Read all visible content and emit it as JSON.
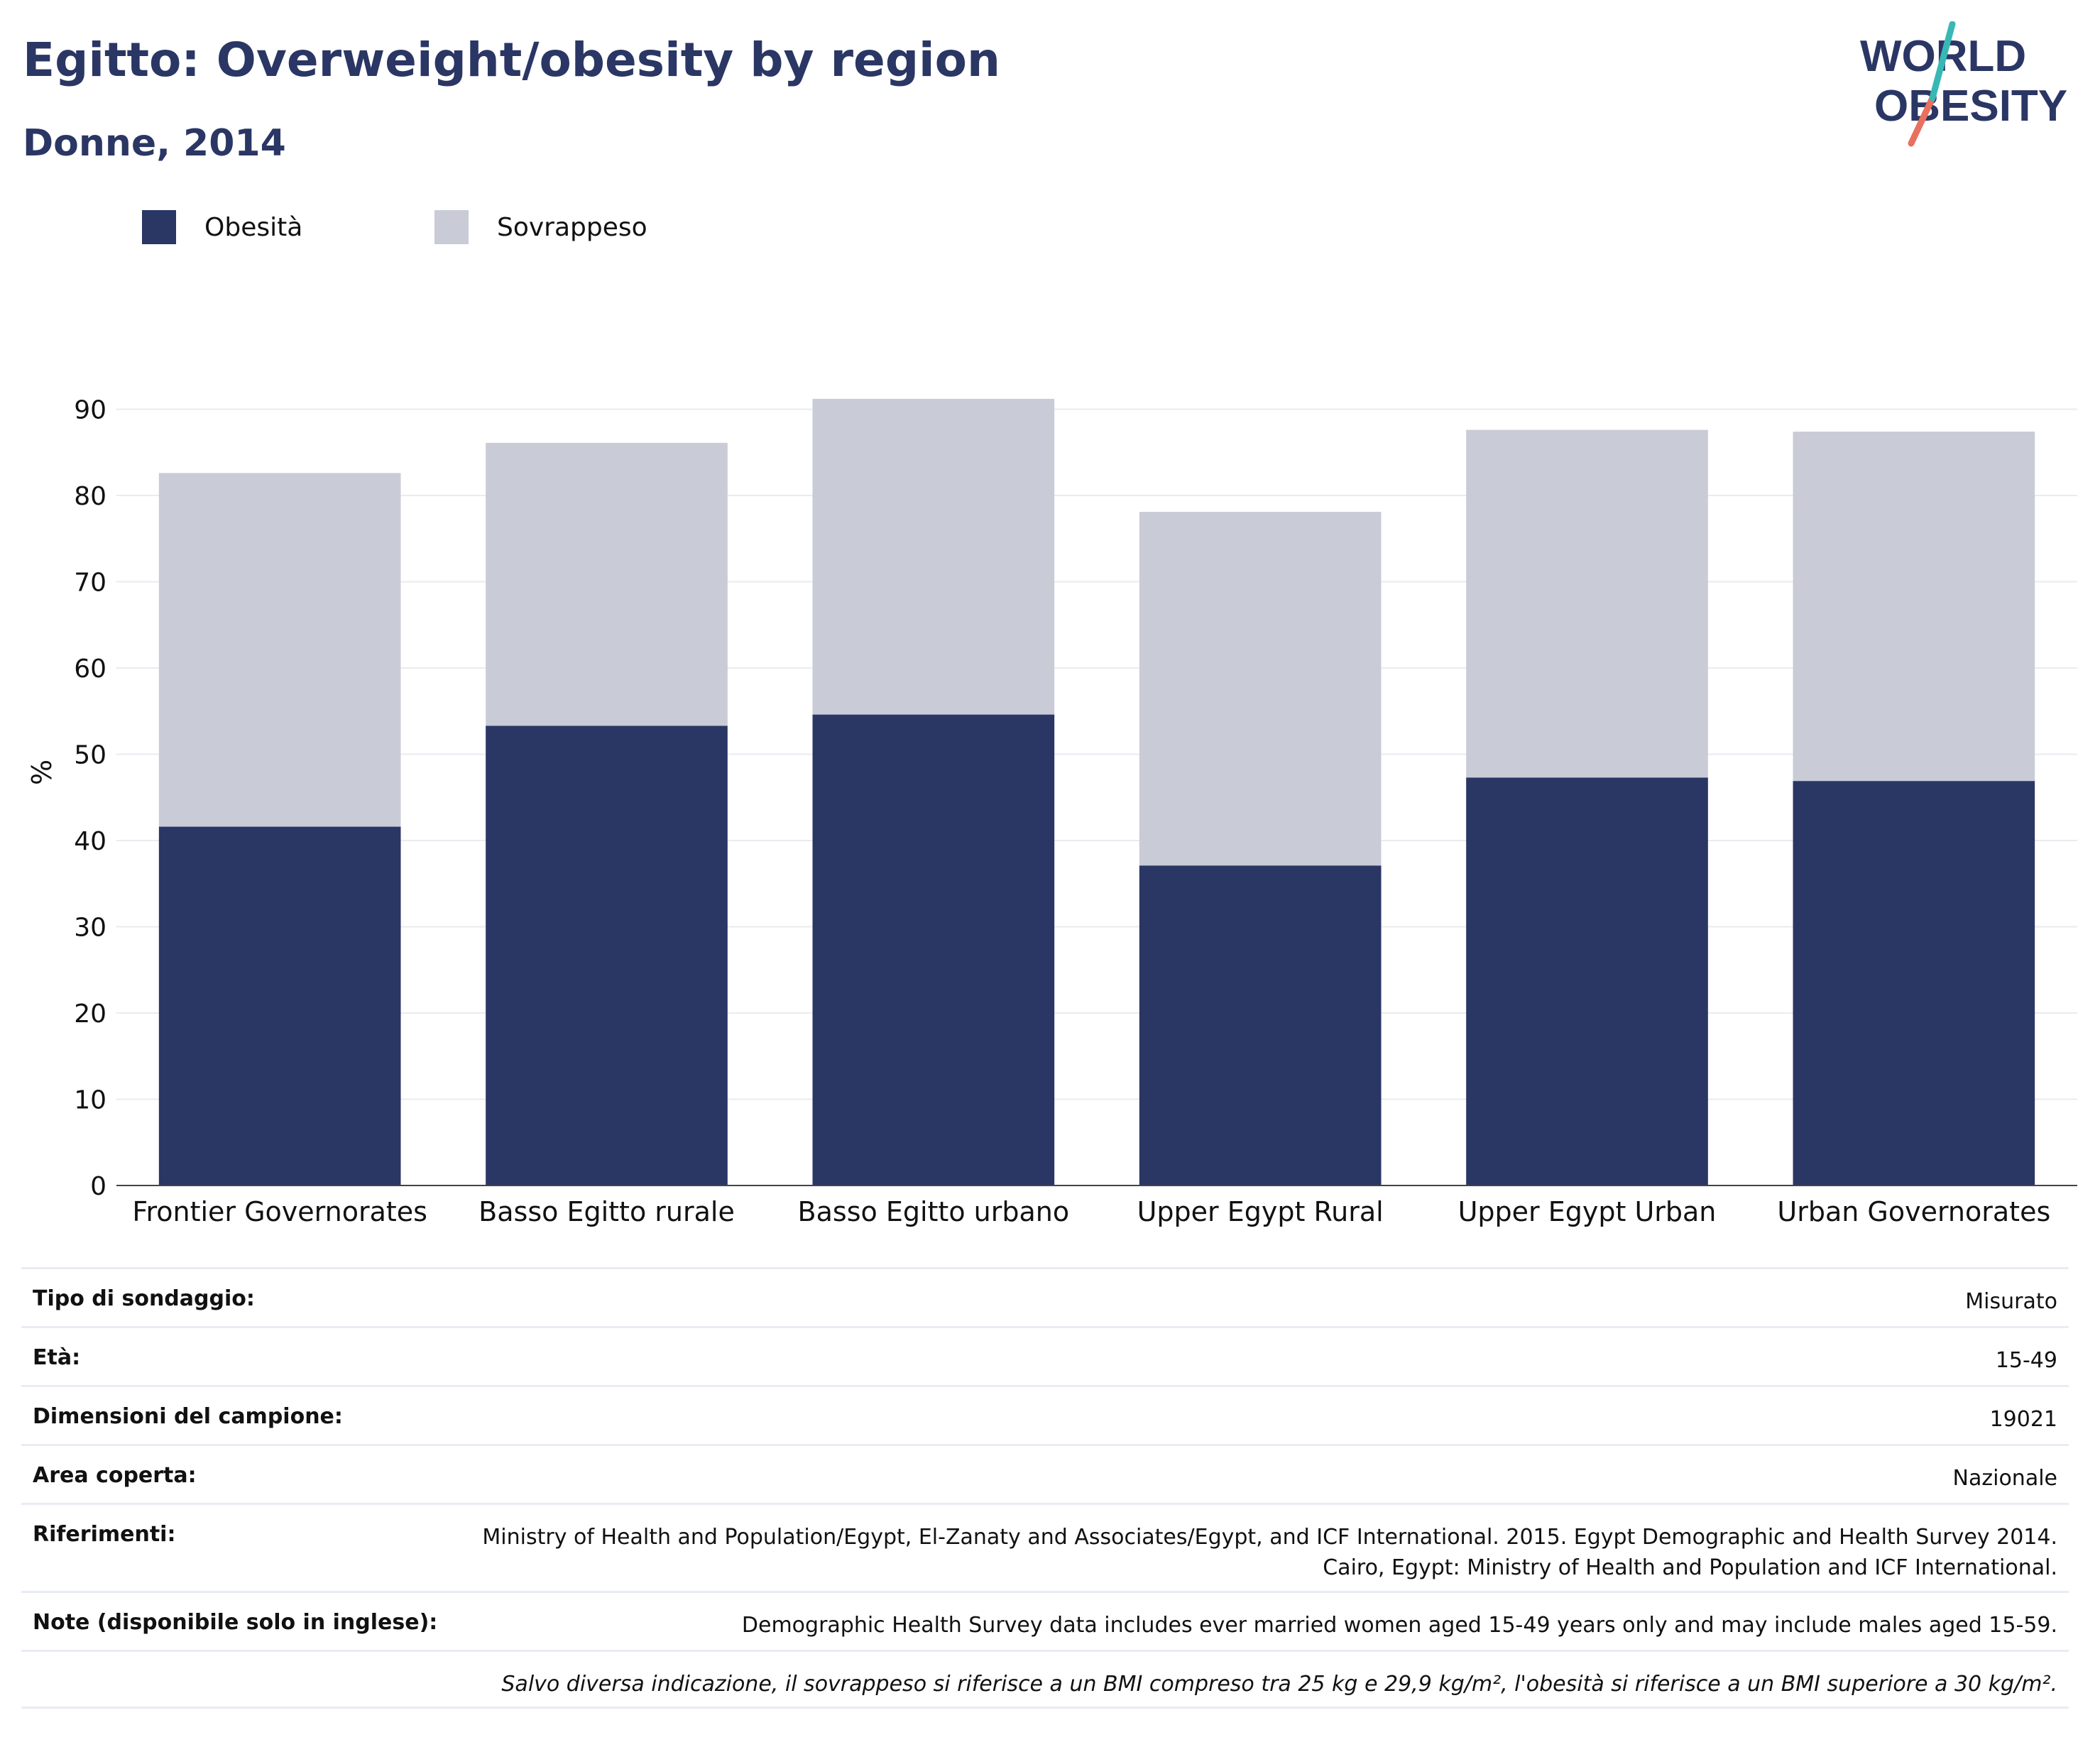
{
  "header": {
    "title": "Egitto: Overweight/obesity by region",
    "subtitle": "Donne, 2014",
    "logo_line1": "WORLD",
    "logo_line2": "OBESITY"
  },
  "legend": [
    {
      "label": "Obesità",
      "color": "#2a3664"
    },
    {
      "label": "Sovrappeso",
      "color": "#c9cbd7"
    }
  ],
  "chart_data": {
    "type": "bar",
    "stacked": true,
    "categories": [
      "Frontier Governorates",
      "Basso Egitto rurale",
      "Basso Egitto urbano",
      "Upper Egypt Rural",
      "Upper Egypt Urban",
      "Urban Governorates"
    ],
    "series": [
      {
        "name": "Obesità",
        "color": "#2a3664",
        "values": [
          41.6,
          53.3,
          54.6,
          37.1,
          47.3,
          46.9
        ]
      },
      {
        "name": "Sovrappeso",
        "color": "#c9cbd7",
        "values": [
          41.0,
          32.8,
          36.6,
          41.0,
          40.3,
          40.5
        ]
      }
    ],
    "ylabel": "%",
    "ylim": [
      0,
      93
    ],
    "yticks": [
      0,
      10,
      20,
      30,
      40,
      50,
      60,
      70,
      80,
      90
    ],
    "grid": true,
    "legend_position": "top-left"
  },
  "meta": {
    "rows": [
      {
        "key": "Tipo di sondaggio:",
        "value": "Misurato"
      },
      {
        "key": "Età:",
        "value": "15-49"
      },
      {
        "key": "Dimensioni del campione:",
        "value": "19021"
      },
      {
        "key": "Area coperta:",
        "value": "Nazionale"
      },
      {
        "key": "Riferimenti:",
        "value": "Ministry of Health and Population/Egypt, El-Zanaty and Associates/Egypt, and ICF International. 2015. Egypt Demographic and Health Survey 2014. Cairo, Egypt: Ministry of Health and Population and ICF International."
      },
      {
        "key": "Note (disponibile solo in inglese):",
        "value": "Demographic Health Survey data includes ever married women aged 15-49 years only and may include males aged 15-59."
      }
    ],
    "footnote": "Salvo diversa indicazione, il sovrappeso si riferisce a un BMI compreso tra 25 kg e 29,9 kg/m², l'obesità si riferisce a un BMI superiore a 30 kg/m²."
  }
}
